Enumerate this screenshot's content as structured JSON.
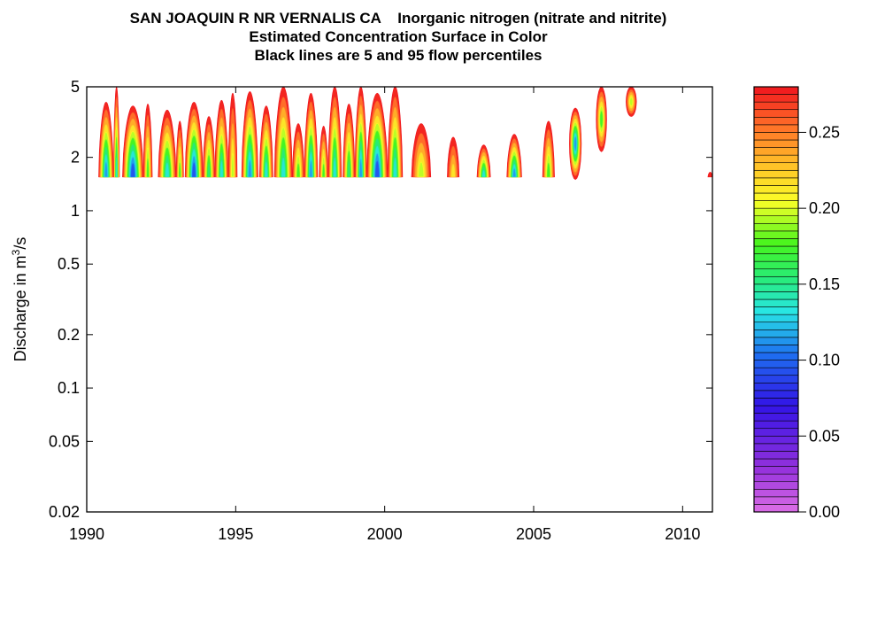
{
  "chart_data": {
    "type": "heatmap",
    "title": "SAN JOAQUIN R NR VERNALIS CA    Inorganic nitrogen (nitrate and nitrite)",
    "subtitle_lines": [
      "Estimated Concentration Surface in Color",
      "Black lines are 5 and 95 flow percentiles"
    ],
    "ylabel_prefix": "Discharge in m",
    "ylabel_sup": "3",
    "ylabel_suffix": "/s",
    "x_scale": "linear",
    "y_scale": "log",
    "xlim": [
      1990,
      2011
    ],
    "ylim": [
      0.02,
      5
    ],
    "x_ticks": [
      {
        "value": 1990,
        "label": "1990"
      },
      {
        "value": 1995,
        "label": "1995"
      },
      {
        "value": 2000,
        "label": "2000"
      },
      {
        "value": 2005,
        "label": "2005"
      },
      {
        "value": 2010,
        "label": "2010"
      }
    ],
    "y_ticks": [
      {
        "value": 0.02,
        "label": "0.02"
      },
      {
        "value": 0.05,
        "label": "0.05"
      },
      {
        "value": 0.1,
        "label": "0.1"
      },
      {
        "value": 0.2,
        "label": "0.2"
      },
      {
        "value": 0.5,
        "label": "0.5"
      },
      {
        "value": 1,
        "label": "1"
      },
      {
        "value": 2,
        "label": "2"
      },
      {
        "value": 5,
        "label": "5"
      }
    ],
    "colorbar": {
      "min": 0.0,
      "max": 0.28,
      "levels": 56,
      "ticks": [
        {
          "value": 0.0,
          "label": "0.00"
        },
        {
          "value": 0.05,
          "label": "0.05"
        },
        {
          "value": 0.1,
          "label": "0.10"
        },
        {
          "value": 0.15,
          "label": "0.15"
        },
        {
          "value": 0.2,
          "label": "0.20"
        },
        {
          "value": 0.25,
          "label": "0.25"
        }
      ]
    },
    "surface_floor_discharge": 1.55,
    "surface_features": [
      {
        "x_start": 1990.4,
        "x_end": 1990.9,
        "top_q": 4.1,
        "min_conc": 0.11
      },
      {
        "x_start": 1990.9,
        "x_end": 1991.1,
        "top_q": 5.0,
        "min_conc": 0.12
      },
      {
        "x_start": 1991.2,
        "x_end": 1991.9,
        "top_q": 3.9,
        "min_conc": 0.08
      },
      {
        "x_start": 1991.9,
        "x_end": 1992.2,
        "top_q": 4.0,
        "min_conc": 0.16
      },
      {
        "x_start": 1992.4,
        "x_end": 1993.0,
        "top_q": 3.7,
        "min_conc": 0.12
      },
      {
        "x_start": 1993.0,
        "x_end": 1993.25,
        "top_q": 3.2,
        "min_conc": 0.17
      },
      {
        "x_start": 1993.3,
        "x_end": 1993.9,
        "top_q": 4.1,
        "min_conc": 0.09
      },
      {
        "x_start": 1993.9,
        "x_end": 1994.3,
        "top_q": 3.4,
        "min_conc": 0.14
      },
      {
        "x_start": 1994.3,
        "x_end": 1994.75,
        "top_q": 4.2,
        "min_conc": 0.12
      },
      {
        "x_start": 1994.75,
        "x_end": 1995.05,
        "top_q": 4.6,
        "min_conc": 0.18
      },
      {
        "x_start": 1995.2,
        "x_end": 1995.75,
        "top_q": 4.7,
        "min_conc": 0.11
      },
      {
        "x_start": 1995.8,
        "x_end": 1996.25,
        "top_q": 3.9,
        "min_conc": 0.13
      },
      {
        "x_start": 1996.3,
        "x_end": 1996.9,
        "top_q": 5.0,
        "min_conc": 0.12
      },
      {
        "x_start": 1996.9,
        "x_end": 1997.3,
        "top_q": 3.1,
        "min_conc": 0.17
      },
      {
        "x_start": 1997.3,
        "x_end": 1997.75,
        "top_q": 4.6,
        "min_conc": 0.1
      },
      {
        "x_start": 1997.8,
        "x_end": 1998.1,
        "top_q": 3.0,
        "min_conc": 0.17
      },
      {
        "x_start": 1998.1,
        "x_end": 1998.55,
        "top_q": 5.0,
        "min_conc": 0.12
      },
      {
        "x_start": 1998.6,
        "x_end": 1999.0,
        "top_q": 4.0,
        "min_conc": 0.14
      },
      {
        "x_start": 1999.0,
        "x_end": 1999.4,
        "top_q": 5.0,
        "min_conc": 0.11
      },
      {
        "x_start": 1999.4,
        "x_end": 2000.1,
        "top_q": 4.6,
        "min_conc": 0.09
      },
      {
        "x_start": 2000.1,
        "x_end": 2000.6,
        "top_q": 5.0,
        "min_conc": 0.13
      },
      {
        "x_start": 2000.9,
        "x_end": 2001.55,
        "top_q": 3.1,
        "min_conc": 0.19
      },
      {
        "x_start": 2002.1,
        "x_end": 2002.5,
        "top_q": 2.6,
        "min_conc": 0.2
      },
      {
        "x_start": 2003.1,
        "x_end": 2003.55,
        "top_q": 2.35,
        "min_conc": 0.13
      },
      {
        "x_start": 2004.1,
        "x_end": 2004.6,
        "top_q": 2.7,
        "min_conc": 0.1
      },
      {
        "x_start": 2005.3,
        "x_end": 2005.7,
        "top_q": 3.2,
        "min_conc": 0.17
      },
      {
        "x_start": 2006.2,
        "x_end": 2006.6,
        "top_q": 3.8,
        "min_conc": 0.11,
        "bottom_q": 1.5
      },
      {
        "x_start": 2007.1,
        "x_end": 2007.45,
        "top_q": 5.0,
        "min_conc": 0.17,
        "bottom_q": 2.15
      },
      {
        "x_start": 2008.1,
        "x_end": 2008.45,
        "top_q": 5.0,
        "min_conc": 0.19,
        "bottom_q": 3.4
      },
      {
        "x_start": 2010.85,
        "x_end": 2011.0,
        "top_q": 1.65,
        "min_conc": 0.27
      }
    ]
  }
}
